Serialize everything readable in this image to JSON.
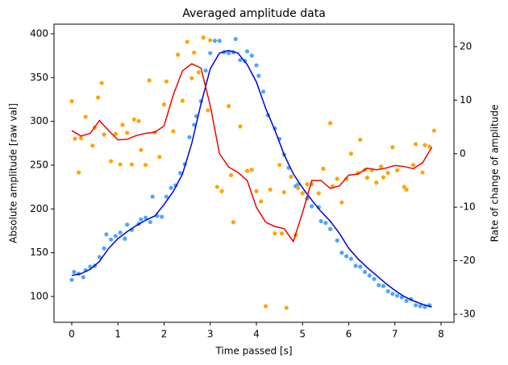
{
  "chart_data": {
    "type": "combo",
    "title": "Averaged amplitude data",
    "xlabel": "Time passed [s]",
    "ylabel": "Absolute amplitude [raw val]",
    "ylabel_color": "#0000ff",
    "y2label": "Rate of change of amplitude",
    "y2label_color": "#ff0000",
    "xlim": [
      -0.384,
      8.28
    ],
    "xticks": [
      0,
      1,
      2,
      3,
      4,
      5,
      6,
      7,
      8
    ],
    "ylim": [
      70.5,
      411
    ],
    "yticks": [
      100,
      150,
      200,
      250,
      300,
      350,
      400
    ],
    "y2lim": [
      -31.5,
      24.2
    ],
    "y2ticks": [
      -30,
      -20,
      -10,
      0,
      10,
      20
    ],
    "series": [
      {
        "type": "scatter",
        "color": "#4da6ff",
        "axis": "y",
        "x": [
          0,
          0.05,
          0.15,
          0.25,
          0.3,
          0.4,
          0.5,
          0.6,
          0.7,
          0.75,
          0.85,
          0.95,
          1.05,
          1.15,
          1.2,
          1.3,
          1.45,
          1.5,
          1.6,
          1.7,
          1.75,
          1.85,
          1.95,
          2.05,
          2.15,
          2.25,
          2.35,
          2.45,
          2.55,
          2.65,
          2.7,
          2.8,
          2.9,
          3.0,
          3.1,
          3.2,
          3.3,
          3.4,
          3.5,
          3.55,
          3.65,
          3.75,
          3.8,
          3.9,
          4.0,
          4.05,
          4.15,
          4.25,
          4.4,
          4.5,
          4.6,
          4.7,
          4.85,
          4.9,
          5.0,
          5.1,
          5.2,
          5.35,
          5.4,
          5.5,
          5.6,
          5.75,
          5.85,
          5.95,
          6.05,
          6.15,
          6.25,
          6.35,
          6.45,
          6.55,
          6.65,
          6.75,
          6.85,
          6.95,
          7.05,
          7.15,
          7.25,
          7.35,
          7.45,
          7.55,
          7.65,
          7.75
        ],
        "values": [
          119,
          128,
          126,
          122,
          130,
          134,
          135,
          145,
          155,
          171,
          165,
          169,
          173,
          166,
          182,
          176,
          183,
          188,
          190,
          185,
          214,
          192,
          191,
          214,
          224,
          227,
          241,
          251,
          282,
          296,
          306,
          323,
          358,
          378,
          392,
          392,
          379,
          378,
          379,
          394,
          370,
          369,
          380,
          375,
          364,
          352,
          334,
          307,
          292,
          280,
          262,
          247,
          226,
          228,
          218,
          212,
          203,
          202,
          186,
          184,
          177,
          164,
          150,
          146,
          143,
          135,
          134,
          128,
          124,
          120,
          113,
          112,
          106,
          103,
          101,
          99,
          95,
          97,
          90,
          89,
          88,
          90
        ]
      },
      {
        "type": "scatter",
        "color": "#ffa500",
        "axis": "y2",
        "x": [
          0,
          0.07,
          0.15,
          0.2,
          0.3,
          0.45,
          0.5,
          0.57,
          0.65,
          0.7,
          0.85,
          0.95,
          1.05,
          1.1,
          1.2,
          1.3,
          1.35,
          1.45,
          1.5,
          1.6,
          1.68,
          1.8,
          1.9,
          2.0,
          2.05,
          2.2,
          2.3,
          2.4,
          2.5,
          2.6,
          2.65,
          2.75,
          2.85,
          2.95,
          3.0,
          3.15,
          3.25,
          3.4,
          3.45,
          3.5,
          3.65,
          3.8,
          3.9,
          4.0,
          4.1,
          4.2,
          4.3,
          4.4,
          4.5,
          4.55,
          4.6,
          4.65,
          4.75,
          4.85,
          4.9,
          5.0,
          5.1,
          5.2,
          5.35,
          5.45,
          5.6,
          5.65,
          5.75,
          5.85,
          5.95,
          6.05,
          6.2,
          6.25,
          6.35,
          6.4,
          6.5,
          6.6,
          6.7,
          6.75,
          6.85,
          6.95,
          7.05,
          7.2,
          7.25,
          7.4,
          7.45,
          7.6,
          7.65,
          7.75,
          7.85
        ],
        "values": [
          9.8,
          2.8,
          -3.5,
          2.9,
          6.9,
          1.5,
          4.9,
          10.5,
          13.2,
          3.6,
          -1.4,
          3.7,
          -2,
          5.4,
          3.9,
          -2,
          6.4,
          6.1,
          0.7,
          -2.1,
          13.7,
          4,
          -0.6,
          9.2,
          13.5,
          4.2,
          18.5,
          9.9,
          20.9,
          14.1,
          18.9,
          15.2,
          21.7,
          8.1,
          21.2,
          -6.2,
          -7,
          8.9,
          -4,
          -12.8,
          5.1,
          -3.2,
          -3,
          -7,
          -8.9,
          -28.5,
          -6.7,
          -14.9,
          -2.1,
          -14.9,
          -7.2,
          -28.8,
          -4.3,
          -15.2,
          -6.4,
          -7.4,
          -5.7,
          -5.7,
          -7.4,
          -2.8,
          5.7,
          -6.1,
          -4.7,
          -9.1,
          -4.7,
          0,
          -3.6,
          2.6,
          -3,
          -4.5,
          -3.1,
          -5.4,
          -2.4,
          -4.4,
          -3.6,
          1.2,
          -3.1,
          -6.2,
          -6.7,
          -2.1,
          1.8,
          -3.5,
          1.6,
          1.3,
          4.3
        ]
      },
      {
        "type": "line",
        "color": "#0000dd",
        "axis": "y",
        "x": [
          0,
          0.2,
          0.4,
          0.6,
          0.8,
          1.0,
          1.2,
          1.4,
          1.6,
          1.8,
          2.0,
          2.2,
          2.4,
          2.6,
          2.8,
          3.0,
          3.2,
          3.4,
          3.6,
          3.8,
          4.0,
          4.2,
          4.4,
          4.6,
          4.8,
          5.0,
          5.2,
          5.4,
          5.6,
          5.8,
          6.0,
          6.2,
          6.4,
          6.6,
          6.8,
          7.0,
          7.2,
          7.4,
          7.6,
          7.8
        ],
        "values": [
          124,
          126,
          131,
          140,
          155,
          166,
          174,
          181,
          187,
          192,
          205,
          220,
          240,
          275,
          320,
          360,
          378,
          381,
          378,
          365,
          345,
          315,
          290,
          262,
          240,
          224,
          210,
          197,
          186,
          172,
          155,
          143,
          133,
          124,
          115,
          107,
          100,
          95,
          91,
          88
        ]
      },
      {
        "type": "line",
        "color": "#ee0000",
        "axis": "y2",
        "x": [
          0,
          0.2,
          0.4,
          0.6,
          0.8,
          1.0,
          1.2,
          1.4,
          1.6,
          1.8,
          2.0,
          2.2,
          2.4,
          2.6,
          2.8,
          3.0,
          3.2,
          3.4,
          3.6,
          3.8,
          4.0,
          4.2,
          4.4,
          4.6,
          4.8,
          5.0,
          5.2,
          5.4,
          5.6,
          5.8,
          6.0,
          6.2,
          6.4,
          6.6,
          6.8,
          7.0,
          7.2,
          7.4,
          7.6,
          7.8
        ],
        "values": [
          4.3,
          3.3,
          3.8,
          6.2,
          4.3,
          2.6,
          2.7,
          3.4,
          3.8,
          4,
          5.2,
          11,
          15.5,
          16.8,
          16,
          9,
          0,
          -2.5,
          -3.5,
          -5,
          -10,
          -12.8,
          -13.6,
          -14,
          -16.4,
          -11,
          -5,
          -5,
          -6.5,
          -6,
          -4,
          -3.8,
          -2.7,
          -3,
          -2.7,
          -2.2,
          -2.4,
          -2.8,
          -1.7,
          1.2
        ]
      }
    ]
  }
}
